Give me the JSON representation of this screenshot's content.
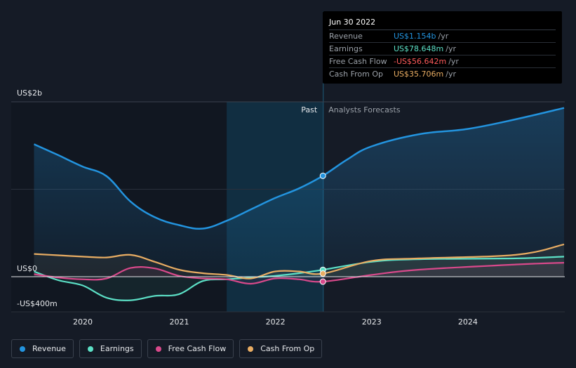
{
  "chart_data": {
    "type": "area",
    "x_ticks": [
      "2020",
      "2021",
      "2022",
      "2023",
      "2024"
    ],
    "y_labels": {
      "top": "US$2b",
      "zero": "US$0",
      "bottom": "-US$400m"
    },
    "ylim": [
      -400,
      2000
    ],
    "past_label": "Past",
    "forecast_label": "Analysts Forecasts",
    "divider_date": "2022-06-30",
    "series": [
      {
        "name": "Revenue",
        "color": "#2394df",
        "x": [
          "2019-06-30",
          "2019-09-30",
          "2019-12-31",
          "2020-03-31",
          "2020-06-30",
          "2020-09-30",
          "2020-12-31",
          "2021-03-31",
          "2021-06-30",
          "2021-09-30",
          "2021-12-31",
          "2022-03-31",
          "2022-06-30",
          "2022-09-30",
          "2022-12-31",
          "2023-06-30",
          "2023-12-31",
          "2024-06-30",
          "2024-12-31"
        ],
        "y": [
          1515,
          1390,
          1260,
          1150,
          860,
          680,
          590,
          550,
          640,
          770,
          900,
          1010,
          1154,
          1340,
          1490,
          1630,
          1690,
          1800,
          1930
        ]
      },
      {
        "name": "Earnings",
        "color": "#5ce0c6",
        "x": [
          "2019-06-30",
          "2019-09-30",
          "2019-12-31",
          "2020-03-31",
          "2020-06-30",
          "2020-09-30",
          "2020-12-31",
          "2021-03-31",
          "2021-06-30",
          "2021-09-30",
          "2021-12-31",
          "2022-03-31",
          "2022-06-30",
          "2022-12-31",
          "2023-06-30",
          "2024-06-30",
          "2024-12-31"
        ],
        "y": [
          60,
          -40,
          -100,
          -240,
          -270,
          -220,
          -200,
          -50,
          -30,
          -10,
          10,
          40,
          78.6,
          170,
          200,
          210,
          230
        ]
      },
      {
        "name": "Free Cash Flow",
        "color": "#d9498b",
        "x": [
          "2019-06-30",
          "2019-09-30",
          "2019-12-31",
          "2020-03-31",
          "2020-06-30",
          "2020-09-30",
          "2020-12-31",
          "2021-03-31",
          "2021-06-30",
          "2021-09-30",
          "2021-12-31",
          "2022-03-31",
          "2022-06-30",
          "2022-12-31",
          "2023-06-30",
          "2024-06-30",
          "2024-12-31"
        ],
        "y": [
          30,
          -10,
          -30,
          -20,
          100,
          95,
          10,
          -20,
          -30,
          -80,
          -20,
          -30,
          -56.6,
          20,
          80,
          140,
          160
        ]
      },
      {
        "name": "Cash From Op",
        "color": "#e9ad63",
        "x": [
          "2019-06-30",
          "2019-09-30",
          "2019-12-31",
          "2020-03-31",
          "2020-06-30",
          "2020-09-30",
          "2020-12-31",
          "2021-03-31",
          "2021-06-30",
          "2021-09-30",
          "2021-12-31",
          "2022-03-31",
          "2022-06-30",
          "2022-12-31",
          "2023-06-30",
          "2024-06-30",
          "2024-12-31"
        ],
        "y": [
          260,
          245,
          230,
          220,
          250,
          170,
          80,
          40,
          20,
          -20,
          60,
          60,
          35.7,
          180,
          210,
          250,
          370
        ]
      }
    ]
  },
  "tooltip": {
    "date": "Jun 30 2022",
    "rows": [
      {
        "label": "Revenue",
        "value": "US$1.154b",
        "suffix": "/yr",
        "color": "#2394df"
      },
      {
        "label": "Earnings",
        "value": "US$78.648m",
        "suffix": "/yr",
        "color": "#5ce0c6"
      },
      {
        "label": "Free Cash Flow",
        "value": "-US$56.642m",
        "suffix": "/yr",
        "color": "#ff5b5b"
      },
      {
        "label": "Cash From Op",
        "value": "US$35.706m",
        "suffix": "/yr",
        "color": "#e9ad63"
      }
    ]
  },
  "legend": [
    {
      "label": "Revenue",
      "color": "#2394df"
    },
    {
      "label": "Earnings",
      "color": "#5ce0c6"
    },
    {
      "label": "Free Cash Flow",
      "color": "#d9498b"
    },
    {
      "label": "Cash From Op",
      "color": "#e9ad63"
    }
  ]
}
